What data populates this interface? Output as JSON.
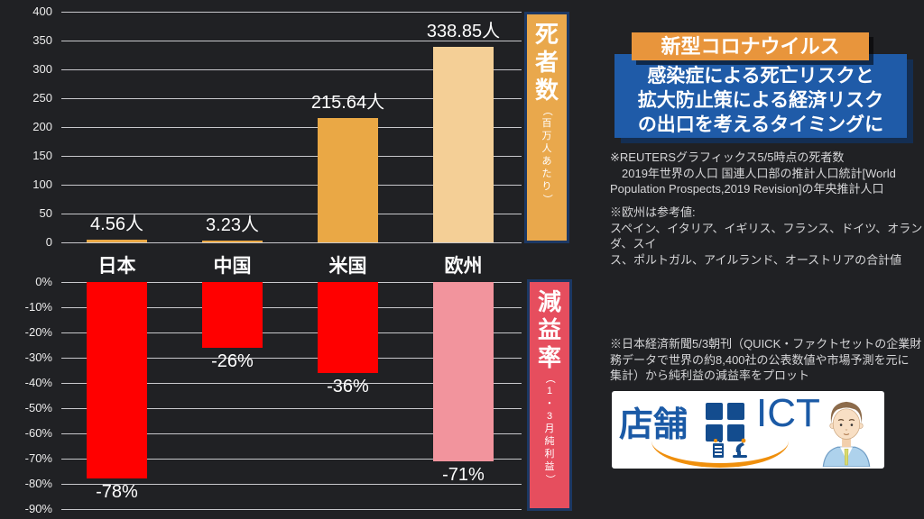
{
  "slide": {
    "title_tag": "新型コロナウイルス",
    "headline": "感染症による死亡リスクと\n拡大防止策による経済リスク\nの出口を考えるタイミングに",
    "note_deaths": "※REUTERSグラフィックス5/5時点の死者数\n　2019年世界の人口 国連人口部の推計人口統計[World\nPopulation Prospects,2019 Revision]の年央推計人口",
    "note_europe": "※欧州は参考値:\nスペイン、イタリア、イギリス、フランス、ドイツ、オランダ、スイ\nス、ポルトガル、アイルランド、オーストリアの合計値",
    "note_decline": "※日本経済新聞5/3朝刊（QUICK・ファクトセットの企業財\n務データで世界の約8,400社の公表数値や市場予測を元に\n集計）から純利益の減益率をプロット",
    "colors": {
      "background": "#202124",
      "accent_orange": "#e8953c",
      "accent_blue": "#1f5ba8",
      "bar_orange": "#eaa845",
      "bar_tan": "#f4cf96",
      "bar_red": "#ff0000",
      "bar_pink": "#f2949d"
    }
  },
  "logo": {
    "text_tenpo": "店舗",
    "text_ict": "ICT"
  },
  "chart_data": [
    {
      "type": "bar",
      "title": "死者数（百万人あたり）",
      "categories": [
        "日本",
        "中国",
        "米国",
        "欧州"
      ],
      "values": [
        4.56,
        3.23,
        215.64,
        338.85
      ],
      "data_labels": [
        "4.56人",
        "3.23人",
        "215.64人",
        "338.85人"
      ],
      "ylabel": "死者数（百万人あたり）",
      "ylim": [
        0,
        400
      ],
      "yticks": [
        "400",
        "350",
        "300",
        "250",
        "200",
        "150",
        "100",
        "50",
        "0"
      ],
      "grid": true,
      "legend": "none",
      "bar_colors": [
        "#eaa845",
        "#eaa845",
        "#eaa845",
        "#f4cf96"
      ],
      "panel": {
        "label": "死者数",
        "sub": "（百万人あたり）",
        "bg": "#e9a84c"
      }
    },
    {
      "type": "bar",
      "title": "減益率（1・3月純利益）",
      "categories": [
        "日本",
        "中国",
        "米国",
        "欧州"
      ],
      "values": [
        -78,
        -26,
        -36,
        -71
      ],
      "data_labels": [
        "-78%",
        "-26%",
        "-36%",
        "-71%"
      ],
      "ylabel": "減益率（1・3月純利益）",
      "ylim": [
        -90,
        0
      ],
      "yticks": [
        "0%",
        "-10%",
        "-20%",
        "-30%",
        "-40%",
        "-50%",
        "-60%",
        "-70%",
        "-80%",
        "-90%"
      ],
      "grid": true,
      "legend": "none",
      "bar_colors": [
        "#ff0000",
        "#ff0000",
        "#ff0000",
        "#f2949d"
      ],
      "panel": {
        "label": "減益率",
        "sub": "（1・3月純利益）",
        "bg": "#e64e5e"
      }
    }
  ]
}
